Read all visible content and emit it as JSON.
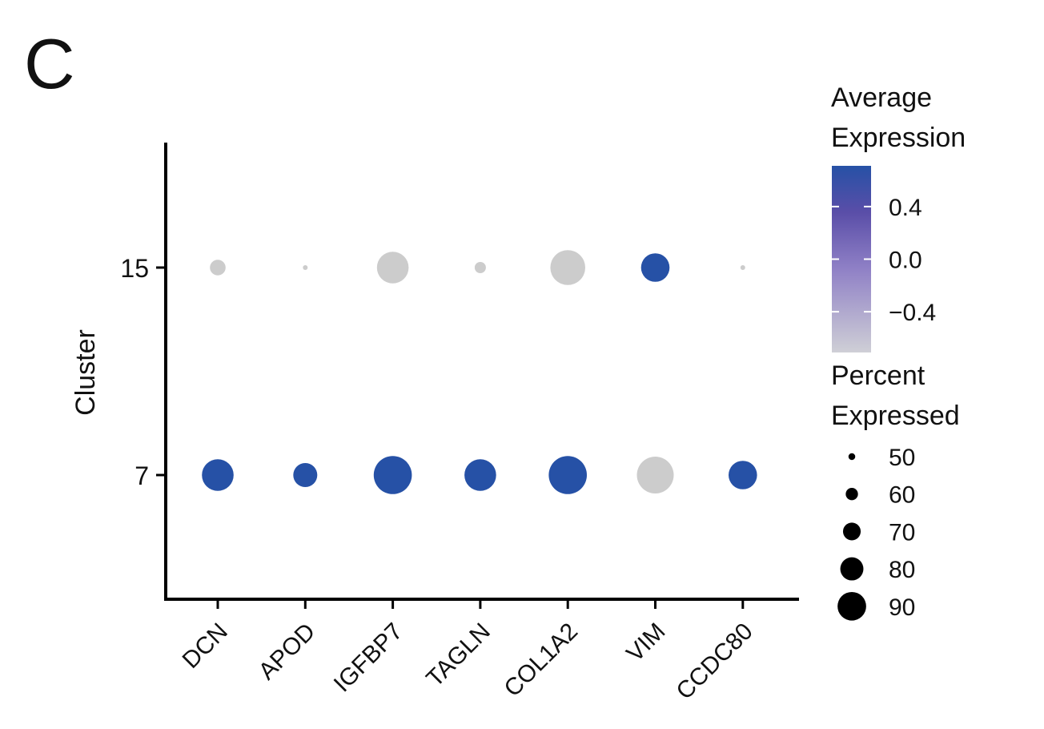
{
  "panel_label": "C",
  "chart_data": {
    "type": "dot",
    "xlabel": "",
    "ylabel": "Cluster",
    "categories": [
      "DCN",
      "APOD",
      "IGFBP7",
      "TAGLN",
      "COL1A2",
      "VIM",
      "CCDC80"
    ],
    "rows": [
      "15",
      "7"
    ],
    "series": [
      {
        "name": "15",
        "percent_expressed": [
          62,
          45,
          87,
          55,
          92,
          82,
          45
        ],
        "average_expression": [
          -0.71,
          -0.71,
          -0.71,
          -0.71,
          -0.71,
          0.71,
          -0.71
        ]
      },
      {
        "name": "7",
        "percent_expressed": [
          87,
          75,
          97,
          87,
          97,
          95,
          82
        ],
        "average_expression": [
          0.71,
          0.71,
          0.71,
          0.71,
          0.71,
          -0.71,
          0.71
        ]
      }
    ],
    "color_legend": {
      "title_line1": "Average",
      "title_line2": "Expression",
      "ticks": [
        "0.4",
        "0.0",
        "−0.4"
      ],
      "tick_values": [
        0.4,
        0.0,
        -0.4
      ],
      "range": [
        -0.71,
        0.71
      ],
      "low_color": "#cfcfd6",
      "mid_color": "#6a5db0",
      "high_color": "#2651a6"
    },
    "size_legend": {
      "title_line1": "Percent",
      "title_line2": "Expressed",
      "values": [
        50,
        60,
        70,
        80,
        90
      ],
      "labels": [
        "50",
        "60",
        "70",
        "80",
        "90"
      ]
    },
    "grid": false,
    "legend_placement": "right"
  }
}
